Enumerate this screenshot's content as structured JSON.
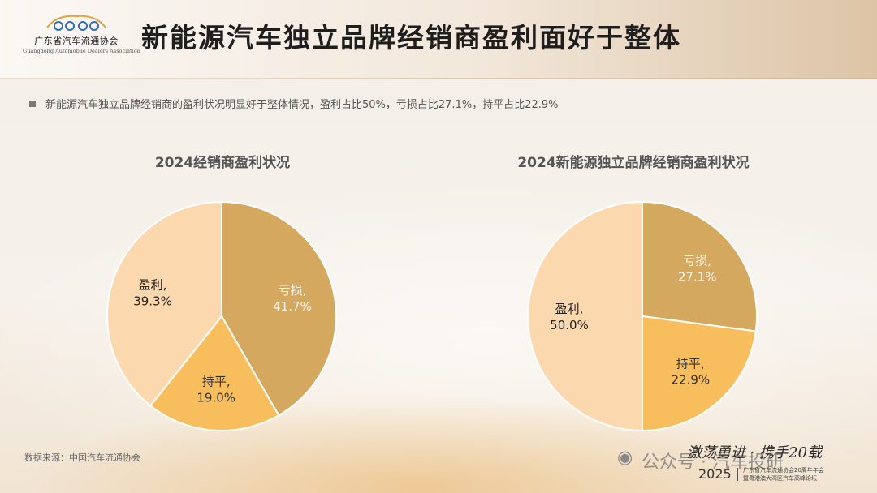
{
  "header": {
    "title": "新能源汽车独立品牌经销商盈利面好于整体",
    "logo_cn": "广东省汽车流通协会",
    "logo_en": "Guangdong Automobile Dealers Association"
  },
  "summary": "新能源汽车独立品牌经销商的盈利状况明显好于整体情况，盈利占比50%，亏损占比27.1%，持平占比22.9%",
  "chart_data": [
    {
      "type": "pie",
      "title": "2024经销商盈利状况",
      "slices": [
        {
          "label": "亏损",
          "value": 41.7,
          "display": "41.7%",
          "color": "#d5a860",
          "text_color": "#fff7ea"
        },
        {
          "label": "持平",
          "value": 19.0,
          "display": "19.0%",
          "color": "#f8bd5c",
          "text_color": "#333333"
        },
        {
          "label": "盈利",
          "value": 39.3,
          "display": "39.3%",
          "color": "#fcd8ae",
          "text_color": "#222222"
        }
      ]
    },
    {
      "type": "pie",
      "title": "2024新能源独立品牌经销商盈利状况",
      "slices": [
        {
          "label": "亏损",
          "value": 27.1,
          "display": "27.1%",
          "color": "#d5a860",
          "text_color": "#fff7ea"
        },
        {
          "label": "持平",
          "value": 22.9,
          "display": "22.9%",
          "color": "#f8bd5c",
          "text_color": "#333333"
        },
        {
          "label": "盈利",
          "value": 50.0,
          "display": "50.0%",
          "color": "#fcd8ae",
          "text_color": "#222222"
        }
      ]
    }
  ],
  "footer": {
    "source": "数据来源：中国汽车流通协会",
    "watermark": "公众号 · 汽车投研",
    "brush_text": "激荡勇进 · 携手20载",
    "year": "2025",
    "event_line1": "广东省汽车流通协会20周年年会",
    "event_line2": "暨粤港澳大湾区汽车高峰论坛"
  },
  "colors": {
    "loss": "#d5a860",
    "flat": "#f8bd5c",
    "profit": "#fcd8ae"
  }
}
